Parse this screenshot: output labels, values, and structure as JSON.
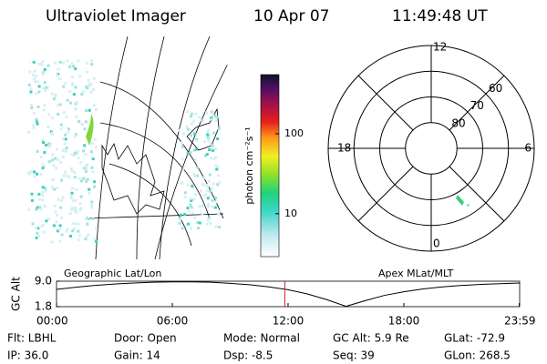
{
  "header": {
    "title": "Ultraviolet Imager",
    "date": "10 Apr 07",
    "time": "11:49:48 UT"
  },
  "colorbar": {
    "label": "photon cm⁻²s⁻¹",
    "clim": [
      2.9,
      550
    ],
    "log": true,
    "ticks": [
      10,
      100
    ]
  },
  "geo_map": {
    "caption": "Geographic Lat/Lon"
  },
  "polar": {
    "caption": "Apex MLat/MLT",
    "latlim": [
      50,
      90
    ],
    "lat_labels": [
      60,
      70,
      80
    ],
    "hour_labels": [
      "12",
      "6",
      "0",
      "18"
    ]
  },
  "altitude_chart": {
    "type": "line",
    "ylabel": "GC Alt",
    "color": "#000000",
    "marker_color": "#cc2222",
    "ylim": [
      1.8,
      9.0
    ],
    "yticks": [
      {
        "value": 9.0,
        "label": "9.0"
      },
      1.8
    ],
    "xlim": [
      0,
      24
    ],
    "xticks": [
      {
        "value": 0,
        "label": "00:00"
      },
      {
        "value": 6,
        "label": "06:00"
      },
      {
        "value": 12,
        "label": "12:00"
      },
      {
        "value": 18,
        "label": "18:00"
      },
      {
        "value": 23.98,
        "label": "23:59"
      }
    ],
    "current_time": 11.83,
    "x": [
      0,
      1,
      2,
      3,
      4,
      5,
      6,
      7,
      8,
      9,
      10,
      11,
      12,
      13,
      14,
      15,
      16,
      17,
      18,
      19,
      20,
      21,
      22,
      23,
      24
    ],
    "y": [
      6.7,
      7.3,
      7.8,
      8.2,
      8.5,
      8.7,
      8.8,
      8.8,
      8.7,
      8.4,
      8.0,
      7.4,
      6.6,
      5.4,
      3.8,
      1.9,
      3.5,
      5.0,
      6.0,
      6.8,
      7.4,
      7.8,
      8.1,
      8.3,
      8.5
    ]
  },
  "footer": [
    [
      "Flt: LBHL",
      "Door: Open",
      "Mode: Normal",
      "GC Alt: 5.9 Re",
      "GLat: -72.9"
    ],
    [
      "IP: 36.0",
      "Gain: 14",
      "Dsp:   -8.5",
      "Seq: 39",
      "GLon: 268.5"
    ]
  ]
}
